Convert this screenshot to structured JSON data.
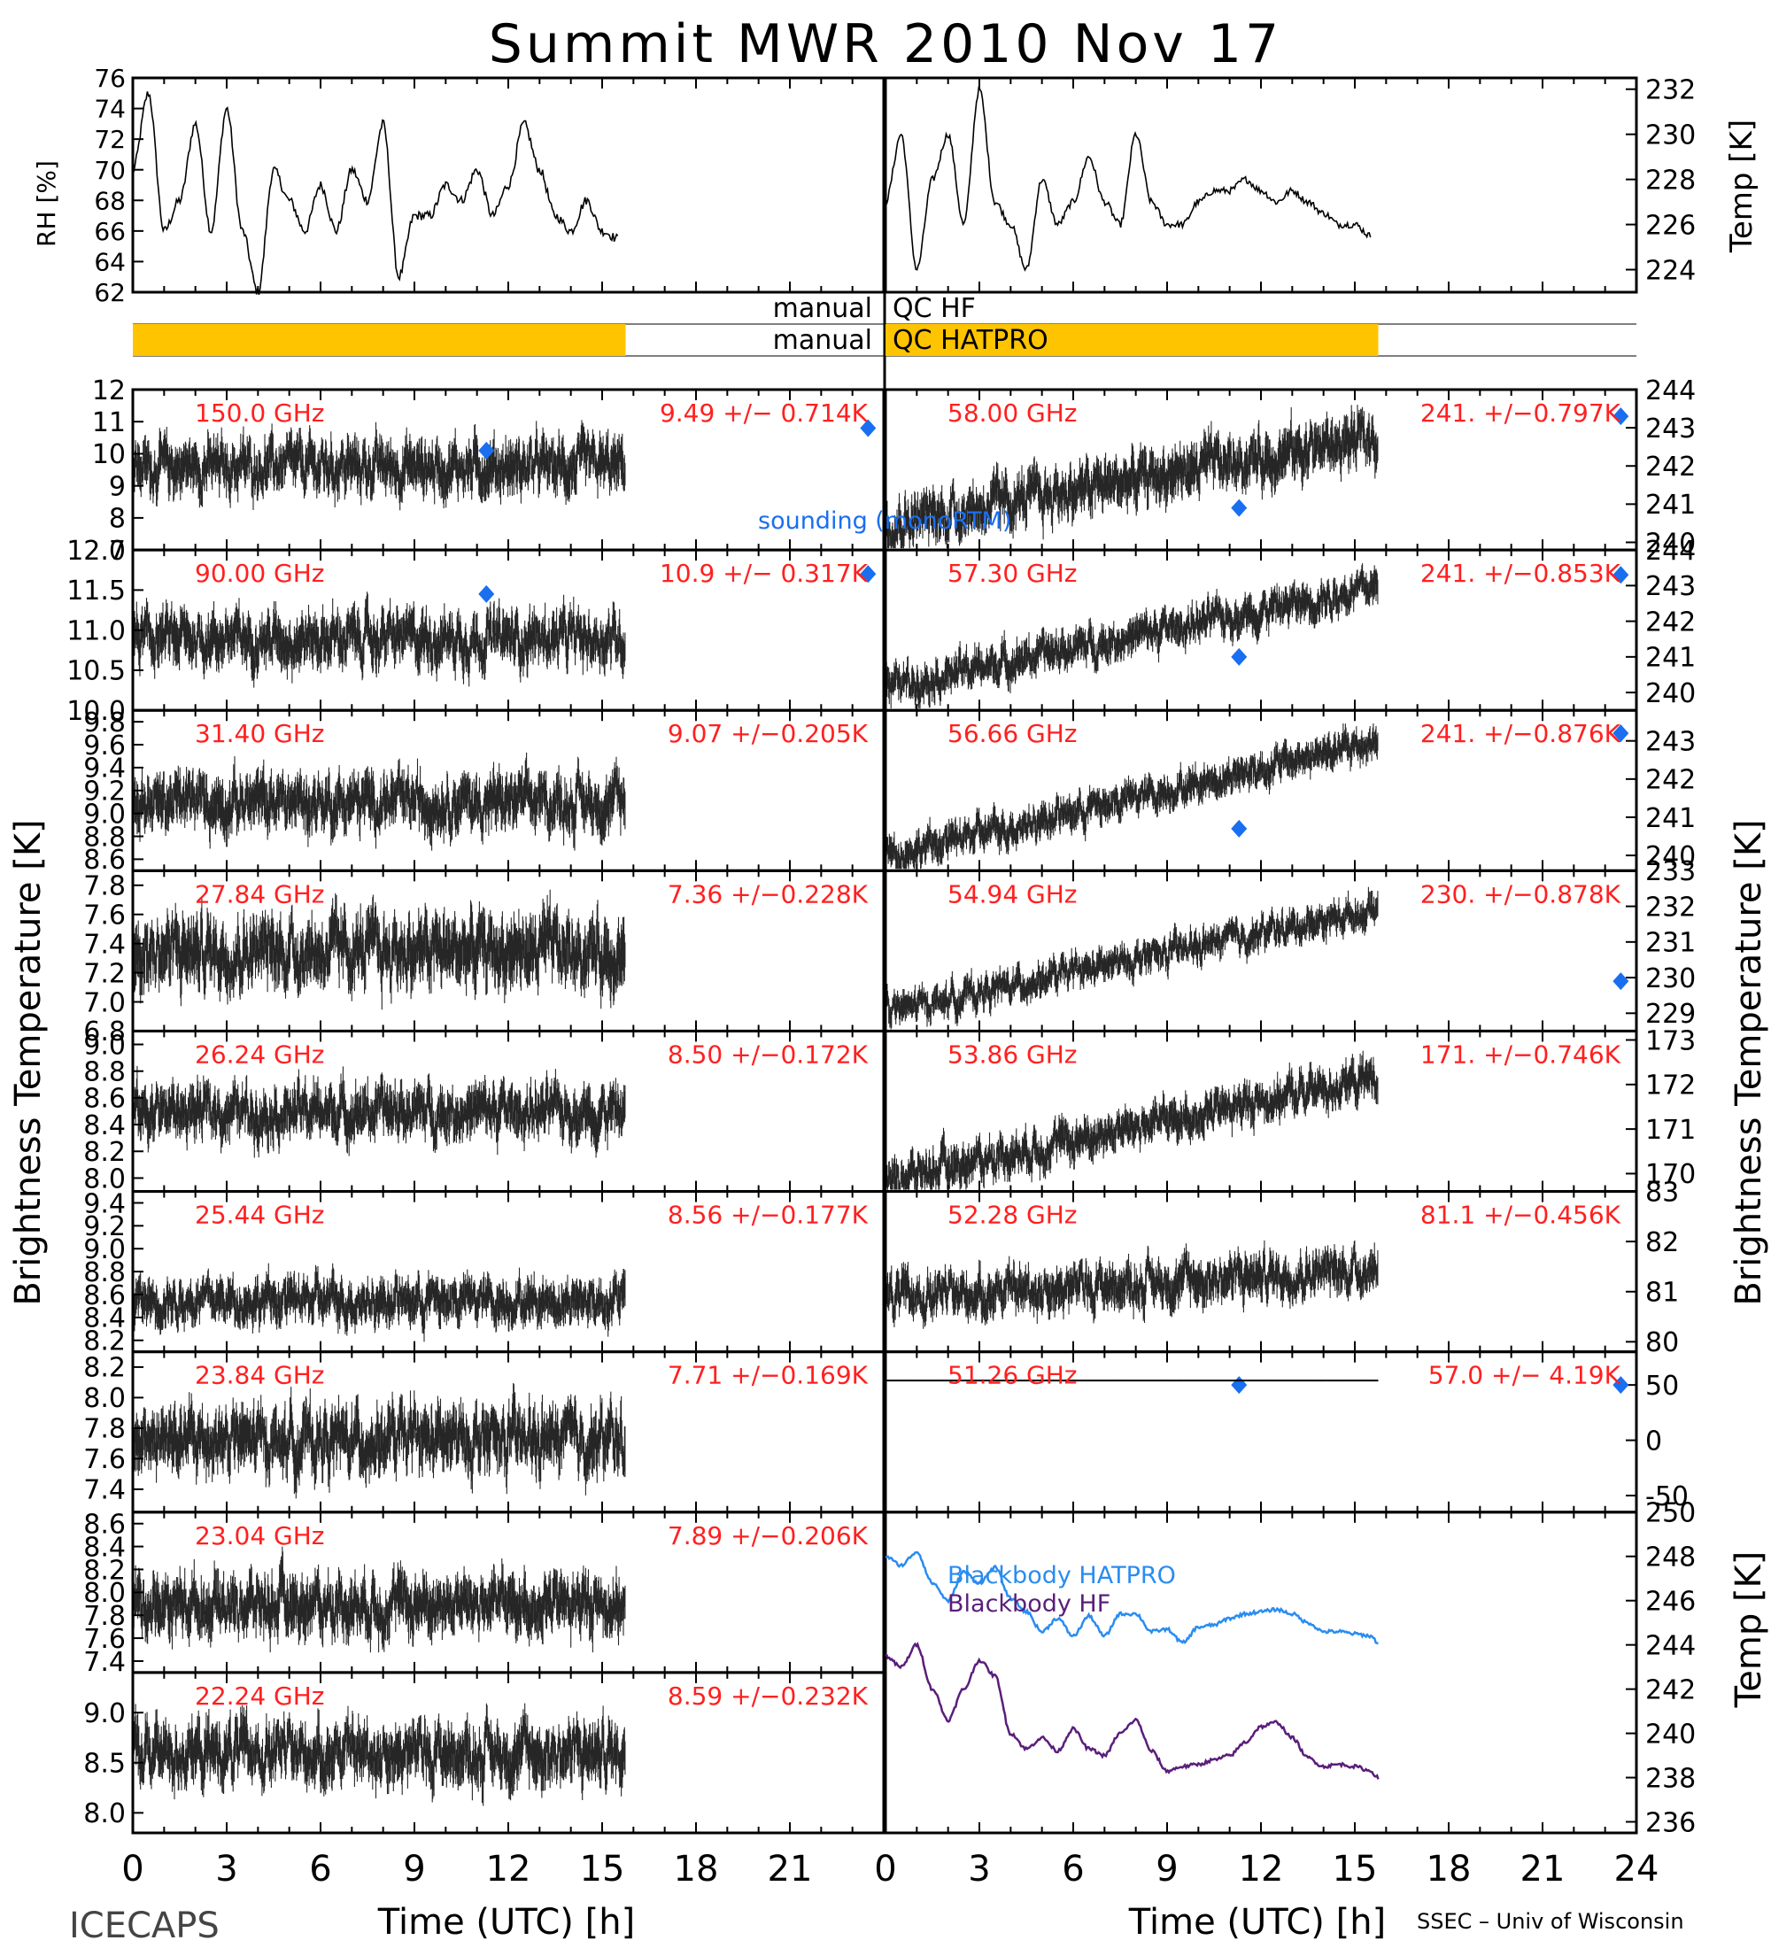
{
  "title": "Summit MWR 2010 Nov 17",
  "footer": {
    "left": "ICECAPS",
    "right": "SSEC – Univ of Wisconsin"
  },
  "colors": {
    "annotation": "#ff2020",
    "sounding": "#1a6ff0",
    "qc_bar": "#ffc400",
    "bb_hatpro": "#2a8cf0",
    "bb_hf": "#5a1e7a",
    "trace": "#000000"
  },
  "axes_labels": {
    "left_bt": "Brightness Temperature [K]",
    "right_bt": "Brightness Temperature [K]",
    "rh": "RH [%]",
    "temp_top": "Temp [K]",
    "temp_bottom": "Temp [K]",
    "time_left": "Time (UTC) [h]",
    "time_right": "Time (UTC) [h]"
  },
  "sounding_label": "sounding (monoRTM)",
  "qc": {
    "label_prefix": "manual",
    "hf": "QC HF",
    "hatpro": "QC HATPRO"
  },
  "chart_data": [
    {
      "id": "rh",
      "type": "line",
      "ylabel": "RH [%]",
      "ylim": [
        62,
        76
      ],
      "yticks": [
        62,
        64,
        66,
        68,
        70,
        72,
        74,
        76
      ],
      "x": [
        0,
        0.5,
        1,
        1.5,
        2,
        2.5,
        3,
        3.5,
        4,
        4.5,
        5,
        5.5,
        6,
        6.5,
        7,
        7.5,
        8,
        8.5,
        9,
        9.5,
        10,
        10.5,
        11,
        11.5,
        12,
        12.5,
        13,
        13.5,
        14,
        14.5,
        15,
        15.5
      ],
      "values": [
        70,
        75,
        66,
        68,
        73,
        66,
        74,
        66,
        62,
        70,
        68,
        66,
        69,
        66,
        70,
        68,
        73,
        63,
        67,
        67,
        69,
        68,
        70,
        67,
        69,
        73,
        70,
        67,
        66,
        68,
        66,
        65.5
      ],
      "xlim": [
        0,
        24
      ]
    },
    {
      "id": "temp_top",
      "type": "line",
      "ylabel": "Temp [K]",
      "ylim": [
        223,
        232.5
      ],
      "yticks": [
        224,
        226,
        228,
        230,
        232
      ],
      "x": [
        0,
        0.5,
        1,
        1.5,
        2,
        2.5,
        3,
        3.5,
        4,
        4.5,
        5,
        5.5,
        6,
        6.5,
        7,
        7.5,
        8,
        8.5,
        9,
        9.5,
        10,
        10.5,
        11,
        11.5,
        12,
        12.5,
        13,
        13.5,
        14,
        14.5,
        15,
        15.5
      ],
      "values": [
        227,
        230,
        224,
        228,
        230,
        226,
        232,
        227,
        226,
        224,
        228,
        226,
        227,
        229,
        227,
        226,
        230,
        227,
        226,
        226,
        227,
        227.5,
        227.5,
        228,
        227.5,
        227,
        227.5,
        227,
        226.5,
        226,
        226,
        225.5
      ],
      "xlim": [
        0,
        24
      ]
    },
    {
      "id": "qc",
      "type": "bar",
      "categories": [
        "QC HF",
        "QC HATPRO"
      ],
      "hf_spans": [],
      "hatpro_left": [
        0,
        15.75
      ],
      "hatpro_right": [
        0,
        15.75
      ]
    },
    {
      "freq": "150.0 GHz",
      "stat": "9.49 +/− 0.714K",
      "side": "left",
      "ylim": [
        7,
        12
      ],
      "yticks": [
        7,
        8,
        9,
        10,
        11,
        12
      ],
      "mean": 9.6,
      "amp": 0.55,
      "trend": 0,
      "end": 15.75,
      "sounding": [
        [
          11.3,
          10.1
        ],
        [
          23.5,
          10.8
        ]
      ]
    },
    {
      "freq": "90.00 GHz",
      "stat": "10.9 +/− 0.317K",
      "side": "left",
      "ylim": [
        10,
        12
      ],
      "yticks": [
        "10.0",
        "10.5",
        "11.0",
        "11.5",
        "12.0"
      ],
      "mean": 10.9,
      "amp": 0.22,
      "trend": 0,
      "end": 15.75,
      "sounding": [
        [
          11.3,
          11.45
        ],
        [
          23.5,
          11.7
        ]
      ]
    },
    {
      "freq": "31.40 GHz",
      "stat": "9.07 +/−0.205K",
      "side": "left",
      "ylim": [
        8.5,
        9.9
      ],
      "yticks": [
        "8.6",
        "8.8",
        "9.0",
        "9.2",
        "9.4",
        "9.6",
        "9.8"
      ],
      "mean": 9.1,
      "amp": 0.16,
      "trend": 0,
      "end": 15.75,
      "sounding": []
    },
    {
      "freq": "27.84 GHz",
      "stat": "7.36 +/−0.228K",
      "side": "left",
      "ylim": [
        6.8,
        7.9
      ],
      "yticks": [
        "6.8",
        "7.0",
        "7.2",
        "7.4",
        "7.6",
        "7.8"
      ],
      "mean": 7.35,
      "amp": 0.16,
      "trend": 0,
      "end": 15.75,
      "sounding": []
    },
    {
      "freq": "26.24 GHz",
      "stat": "8.50 +/−0.172K",
      "side": "left",
      "ylim": [
        7.9,
        9.1
      ],
      "yticks": [
        "8.0",
        "8.2",
        "8.4",
        "8.6",
        "8.8",
        "9.0"
      ],
      "mean": 8.5,
      "amp": 0.13,
      "trend": 0,
      "end": 15.75,
      "sounding": []
    },
    {
      "freq": "25.44 GHz",
      "stat": "8.56 +/−0.177K",
      "side": "left",
      "ylim": [
        8.1,
        9.5
      ],
      "yticks": [
        "8.2",
        "8.4",
        "8.6",
        "8.8",
        "9.0",
        "9.2",
        "9.4"
      ],
      "mean": 8.55,
      "amp": 0.13,
      "trend": 0,
      "end": 15.75,
      "sounding": []
    },
    {
      "freq": "23.84 GHz",
      "stat": "7.71 +/−0.169K",
      "side": "left",
      "ylim": [
        7.25,
        8.3
      ],
      "yticks": [
        "7.4",
        "7.6",
        "7.8",
        "8.0",
        "8.2"
      ],
      "mean": 7.72,
      "amp": 0.14,
      "trend": 0,
      "end": 15.75,
      "sounding": []
    },
    {
      "freq": "23.04 GHz",
      "stat": "7.89 +/−0.206K",
      "side": "left",
      "ylim": [
        7.3,
        8.7
      ],
      "yticks": [
        "7.4",
        "7.6",
        "7.8",
        "8.0",
        "8.2",
        "8.4",
        "8.6"
      ],
      "mean": 7.9,
      "amp": 0.17,
      "trend": 0,
      "end": 15.75,
      "sounding": []
    },
    {
      "freq": "22.24 GHz",
      "stat": "8.59 +/−0.232K",
      "side": "left",
      "ylim": [
        7.8,
        9.4
      ],
      "yticks": [
        "8.0",
        "8.5",
        "9.0"
      ],
      "mean": 8.6,
      "amp": 0.2,
      "trend": 0,
      "end": 15.75,
      "sounding": []
    },
    {
      "freq": "58.00 GHz",
      "stat": "241. +/−0.797K",
      "side": "right",
      "ylim": [
        239.8,
        244
      ],
      "yticks": [
        240,
        241,
        242,
        243,
        244
      ],
      "mean": 241.4,
      "amp": 0.45,
      "trend": 2.3,
      "end": 15.75,
      "sounding": [
        [
          11.3,
          240.9
        ],
        [
          23.5,
          243.3
        ]
      ]
    },
    {
      "freq": "57.30 GHz",
      "stat": "241. +/−0.853K",
      "side": "right",
      "ylim": [
        239.5,
        244
      ],
      "yticks": [
        240,
        241,
        242,
        243,
        244
      ],
      "mean": 241.3,
      "amp": 0.35,
      "trend": 2.8,
      "end": 15.75,
      "sounding": [
        [
          11.3,
          241
        ],
        [
          23.5,
          243.3
        ]
      ]
    },
    {
      "freq": "56.66 GHz",
      "stat": "241. +/−0.876K",
      "side": "right",
      "ylim": [
        239.6,
        243.8
      ],
      "yticks": [
        240,
        241,
        242,
        243
      ],
      "mean": 241.2,
      "amp": 0.3,
      "trend": 3.0,
      "end": 15.75,
      "sounding": [
        [
          11.3,
          240.7
        ],
        [
          23.5,
          243.2
        ]
      ]
    },
    {
      "freq": "54.94 GHz",
      "stat": "230. +/−0.878K",
      "side": "right",
      "ylim": [
        228.5,
        233
      ],
      "yticks": [
        229,
        230,
        231,
        232,
        233
      ],
      "mean": 230.2,
      "amp": 0.3,
      "trend": 2.9,
      "end": 15.75,
      "sounding": [
        [
          23.5,
          229.9
        ]
      ]
    },
    {
      "freq": "53.86 GHz",
      "stat": "171. +/−0.746K",
      "side": "right",
      "ylim": [
        169.6,
        173.2
      ],
      "yticks": [
        170,
        171,
        172,
        173
      ],
      "mean": 170.8,
      "amp": 0.3,
      "trend": 2.3,
      "end": 15.75,
      "sounding": []
    },
    {
      "freq": "52.28 GHz",
      "stat": "81.1 +/−0.456K",
      "side": "right",
      "ylim": [
        79.8,
        83
      ],
      "yticks": [
        80,
        81,
        82,
        83
      ],
      "mean": 81.1,
      "amp": 0.3,
      "trend": 0.6,
      "end": 15.75,
      "sounding": []
    },
    {
      "freq": "51.26 GHz",
      "stat": "57.0 +/− 4.19K",
      "side": "right",
      "ylim": [
        -65,
        80
      ],
      "yticks": [
        -50,
        0,
        50
      ],
      "mean": 54,
      "amp": 0.3,
      "trend": 0,
      "end": 15.75,
      "sounding": [
        [
          11.3,
          50
        ],
        [
          23.5,
          50
        ]
      ]
    },
    {
      "id": "blackbody",
      "type": "line",
      "ylabel": "Temp [K]",
      "ylim": [
        235.5,
        250
      ],
      "yticks": [
        236,
        238,
        240,
        242,
        244,
        246,
        248,
        250
      ],
      "xlim": [
        0,
        24
      ],
      "series": [
        {
          "name": "Blackbody HATPRO",
          "x": [
            0,
            0.5,
            1,
            1.5,
            2,
            2.5,
            3,
            3.5,
            4,
            4.5,
            5,
            5.5,
            6,
            6.5,
            7,
            7.5,
            8,
            8.5,
            9,
            9.5,
            10,
            10.5,
            11,
            11.5,
            12,
            12.5,
            13,
            13.5,
            14,
            14.5,
            15,
            15.5,
            15.75
          ],
          "values": [
            248,
            247.6,
            248.2,
            246.8,
            246,
            247.3,
            246.8,
            247.5,
            246.1,
            245.5,
            244.6,
            245.2,
            244.4,
            245.3,
            244.4,
            245.4,
            245.4,
            244.6,
            244.7,
            244.1,
            244.8,
            244.9,
            245.2,
            245.4,
            245.5,
            245.6,
            245.4,
            245,
            244.6,
            244.6,
            244.5,
            244.4,
            244.1
          ]
        },
        {
          "name": "Blackbody HF",
          "x": [
            0,
            0.5,
            1,
            1.5,
            2,
            2.5,
            3,
            3.5,
            4,
            4.5,
            5,
            5.5,
            6,
            6.5,
            7,
            7.5,
            8,
            8.5,
            9,
            9.5,
            10,
            10.5,
            11,
            11.5,
            12,
            12.5,
            13,
            13.5,
            14,
            14.5,
            15,
            15.5,
            15.75
          ],
          "values": [
            243.5,
            243,
            244,
            242,
            240.6,
            242,
            243.3,
            242.6,
            240,
            239.3,
            239.8,
            239.2,
            240.2,
            239.3,
            239,
            240,
            240.6,
            239.2,
            238.3,
            238.5,
            238.6,
            238.8,
            239,
            239.6,
            240.3,
            240.5,
            239.8,
            238.9,
            238.5,
            238.6,
            238.5,
            238.3,
            238
          ]
        }
      ]
    }
  ]
}
